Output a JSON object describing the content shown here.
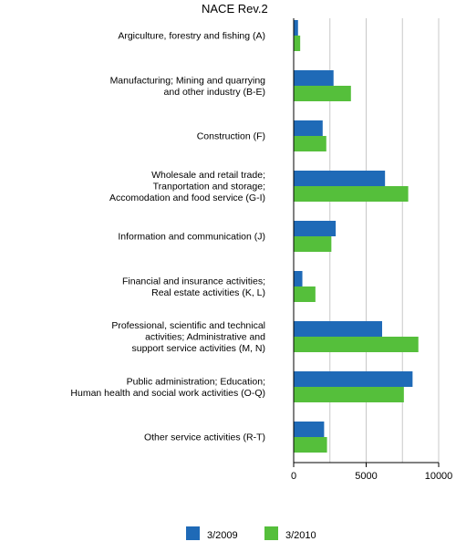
{
  "chart_data": {
    "type": "bar",
    "orientation": "horizontal",
    "title": "NACE Rev.2",
    "categories": [
      "Argiculture, forestry and fishing (A)",
      "Manufacturing; Mining and quarrying\nand other industry (B-E)",
      "Construction (F)",
      "Wholesale and retail trade;\nTranportation and storage;\nAccomodation and food service (G-I)",
      "Information and communication (J)",
      "Financial and insurance activities;\nReal estate activities (K, L)",
      "Professional, scientific and technical\nactivities; Administrative and\nsupport service activities (M, N)",
      "Public administration; Education;\nHuman health and social work activities (O-Q)",
      "Other service activities (R-T)"
    ],
    "series": [
      {
        "name": "3/2009",
        "color": "#1f6ab7",
        "values": [
          300,
          2750,
          2000,
          6300,
          2900,
          600,
          6100,
          8200,
          2100
        ]
      },
      {
        "name": "3/2010",
        "color": "#55bf3b",
        "values": [
          450,
          3950,
          2250,
          7900,
          2600,
          1500,
          8600,
          7600,
          2300
        ]
      }
    ],
    "xlim": [
      0,
      10000
    ],
    "xticks": [
      0,
      5000,
      10000
    ],
    "xtick_labels": [
      "0",
      "5000",
      "10000"
    ],
    "grid": "vertical",
    "legend": "bottom-center"
  }
}
